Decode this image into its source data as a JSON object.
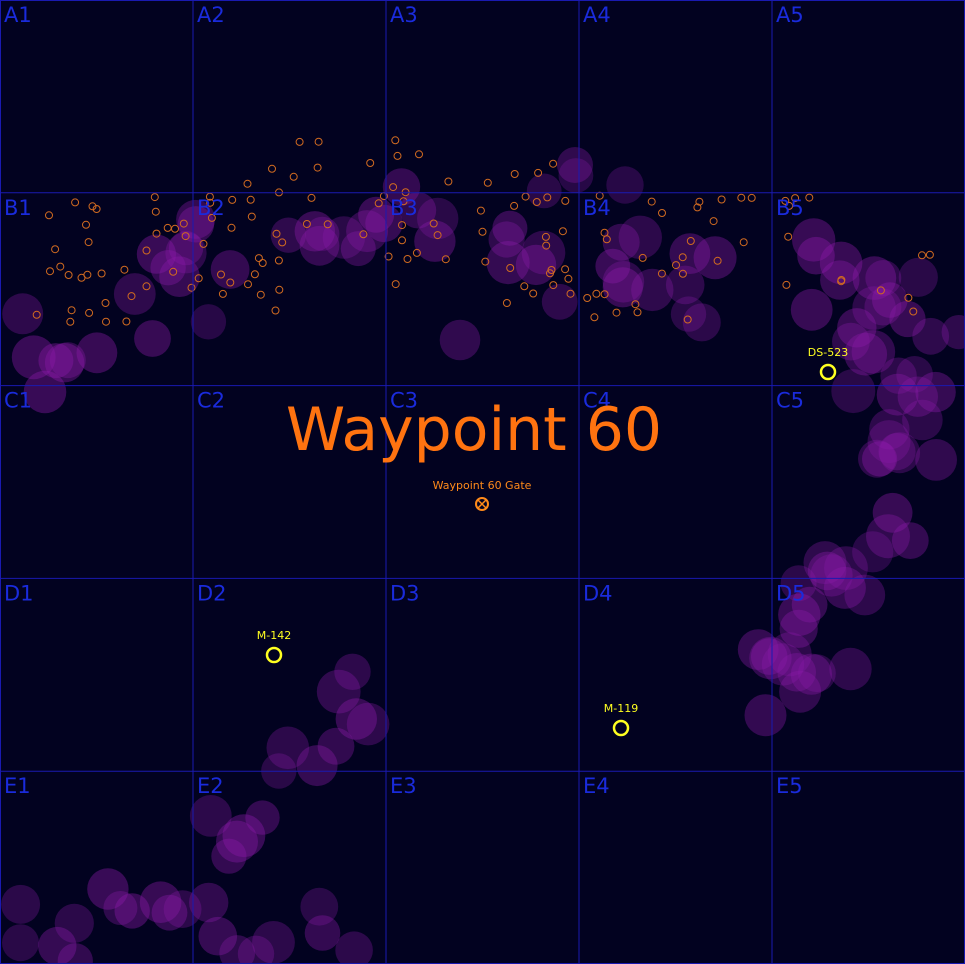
{
  "map": {
    "title": "Waypoint 60",
    "grid": {
      "rows": [
        "A",
        "B",
        "C",
        "D",
        "E"
      ],
      "cols": [
        "1",
        "2",
        "3",
        "4",
        "5"
      ],
      "line_color": "#1a1ab0",
      "label_color": "#1a2bdc"
    },
    "colors": {
      "background": "#020220",
      "title": "#ff7310",
      "marker": "#ffff20",
      "gate": "#ff8a1a",
      "nebula": "#8a1aa8",
      "debris": "#d06a20"
    },
    "gate": {
      "label": "Waypoint 60 Gate",
      "icon": "gate-icon"
    },
    "markers": [
      {
        "id": "ds-523",
        "label": "DS-523",
        "icon": "ring-marker-icon"
      },
      {
        "id": "m-142",
        "label": "M-142",
        "icon": "ring-marker-icon"
      },
      {
        "id": "m-119",
        "label": "M-119",
        "icon": "ring-marker-icon"
      }
    ]
  }
}
